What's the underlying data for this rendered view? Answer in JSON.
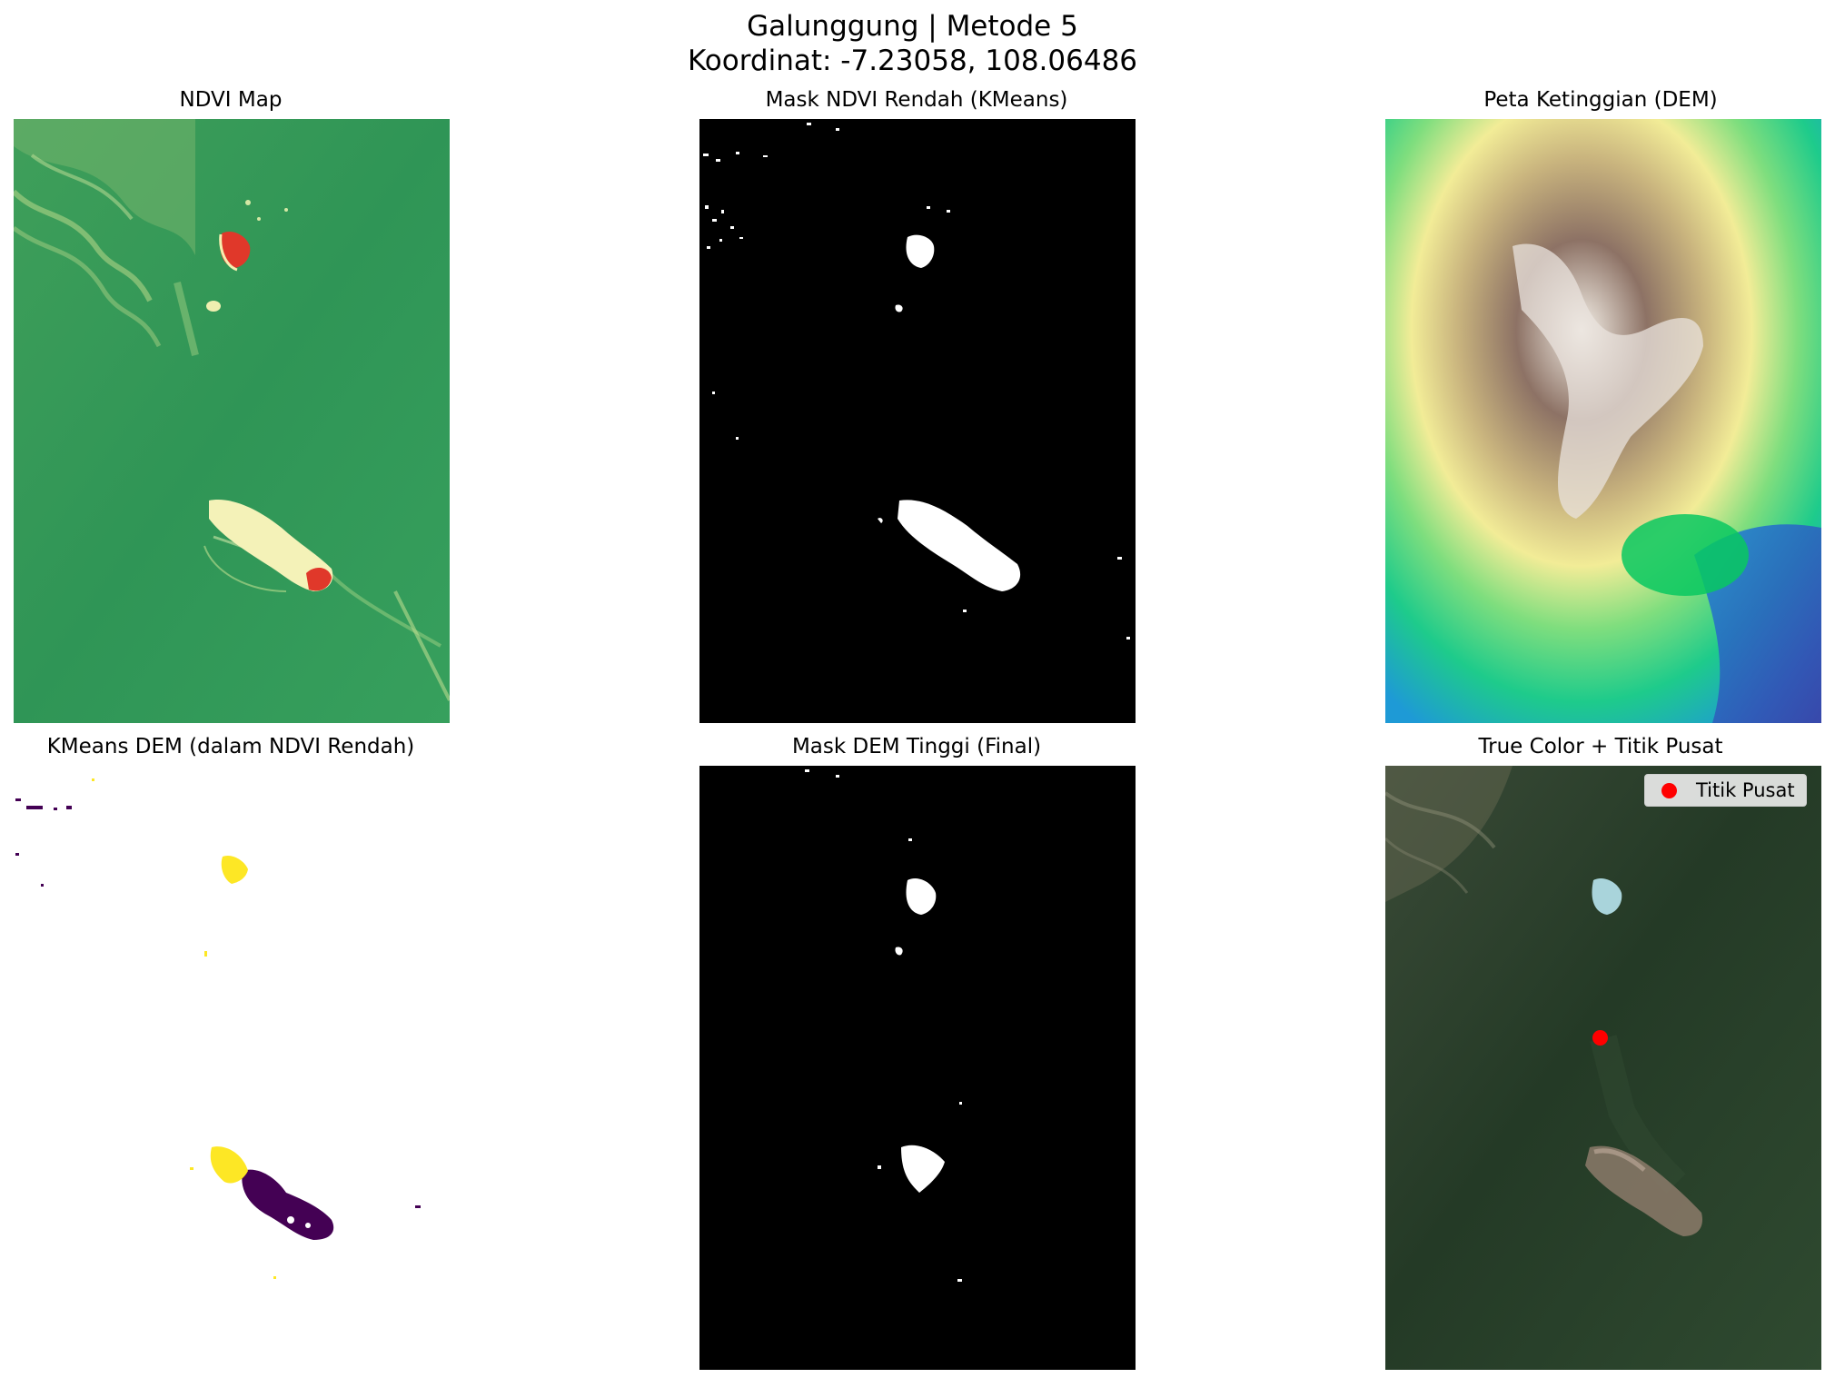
{
  "figure": {
    "title_line1": "Galunggung | Metode 5",
    "title_line2": "Koordinat: -7.23058, 108.06486"
  },
  "panels": [
    {
      "title": "NDVI Map",
      "colormap": "RdYlGn"
    },
    {
      "title": "Mask NDVI Rendah (KMeans)",
      "colormap": "gray"
    },
    {
      "title": "Peta Ketinggian (DEM)",
      "colormap": "terrain"
    },
    {
      "title": "KMeans DEM (dalam NDVI Rendah)",
      "colormap": "viridis"
    },
    {
      "title": "Mask DEM Tinggi (Final)",
      "colormap": "gray"
    },
    {
      "title": "True Color + Titik Pusat",
      "colormap": "rgb"
    }
  ],
  "legend": {
    "label": "Titik Pusat",
    "marker_color": "#ff0000"
  },
  "colors": {
    "ndvi_green": "#2e9a58",
    "ndvi_red": "#e0382a",
    "ndvi_yellow": "#f4f2b8",
    "viridis_yellow": "#fde725",
    "viridis_purple": "#440154",
    "center_marker": "#ff0000"
  }
}
